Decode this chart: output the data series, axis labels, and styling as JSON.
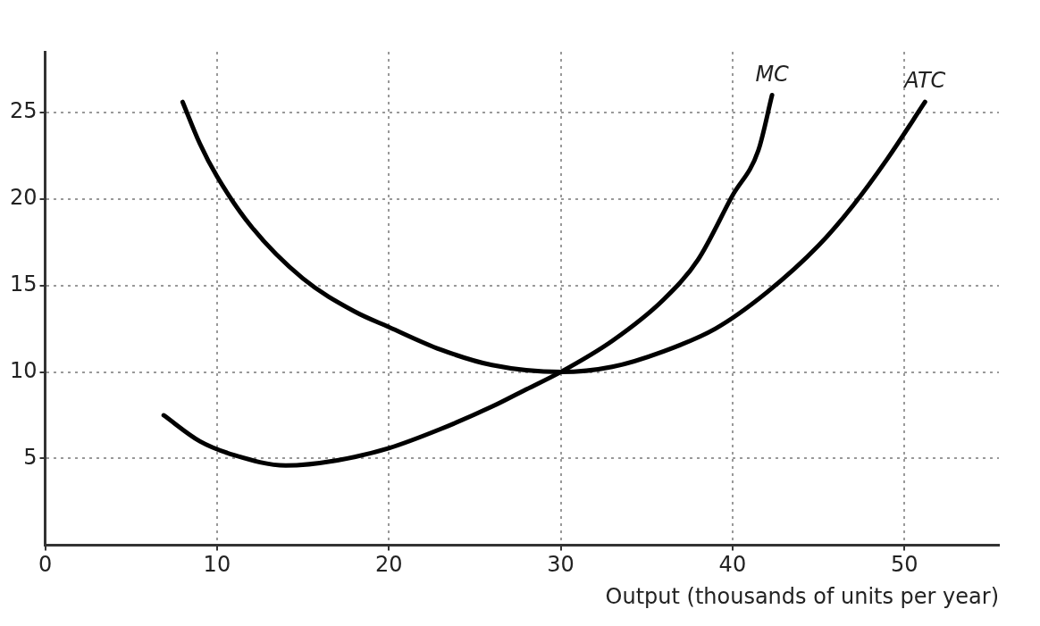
{
  "chart_data": {
    "type": "line",
    "xlabel": "Output (thousands of units per year)",
    "xlim": [
      0,
      55.5
    ],
    "ylim": [
      0,
      28.5
    ],
    "xticks": [
      0,
      10,
      20,
      30,
      40,
      50
    ],
    "yticks": [
      5,
      10,
      15,
      20,
      25
    ],
    "grid": true,
    "legend": false,
    "marker": "none",
    "line_style": "solid",
    "series": [
      {
        "name": "MC",
        "color": "#000000",
        "x": [
          6.9,
          9,
          11,
          14,
          17,
          20,
          23,
          26,
          28,
          30,
          33,
          36,
          38,
          40,
          41.5,
          42.3
        ],
        "values": [
          7.5,
          6,
          5.2,
          4.6,
          4.9,
          5.6,
          6.7,
          8,
          9,
          10,
          11.8,
          14.2,
          16.5,
          20.2,
          22.8,
          26
        ]
      },
      {
        "name": "ATC",
        "color": "#000000",
        "x": [
          8,
          9,
          10,
          12,
          15,
          18,
          20,
          23,
          26,
          30,
          33,
          36,
          39,
          42,
          45,
          47,
          49,
          51.2
        ],
        "values": [
          25.6,
          23.2,
          21.3,
          18.4,
          15.4,
          13.5,
          12.6,
          11.3,
          10.4,
          10,
          10.3,
          11.2,
          12.5,
          14.6,
          17.3,
          19.6,
          22.3,
          25.6
        ]
      }
    ]
  }
}
